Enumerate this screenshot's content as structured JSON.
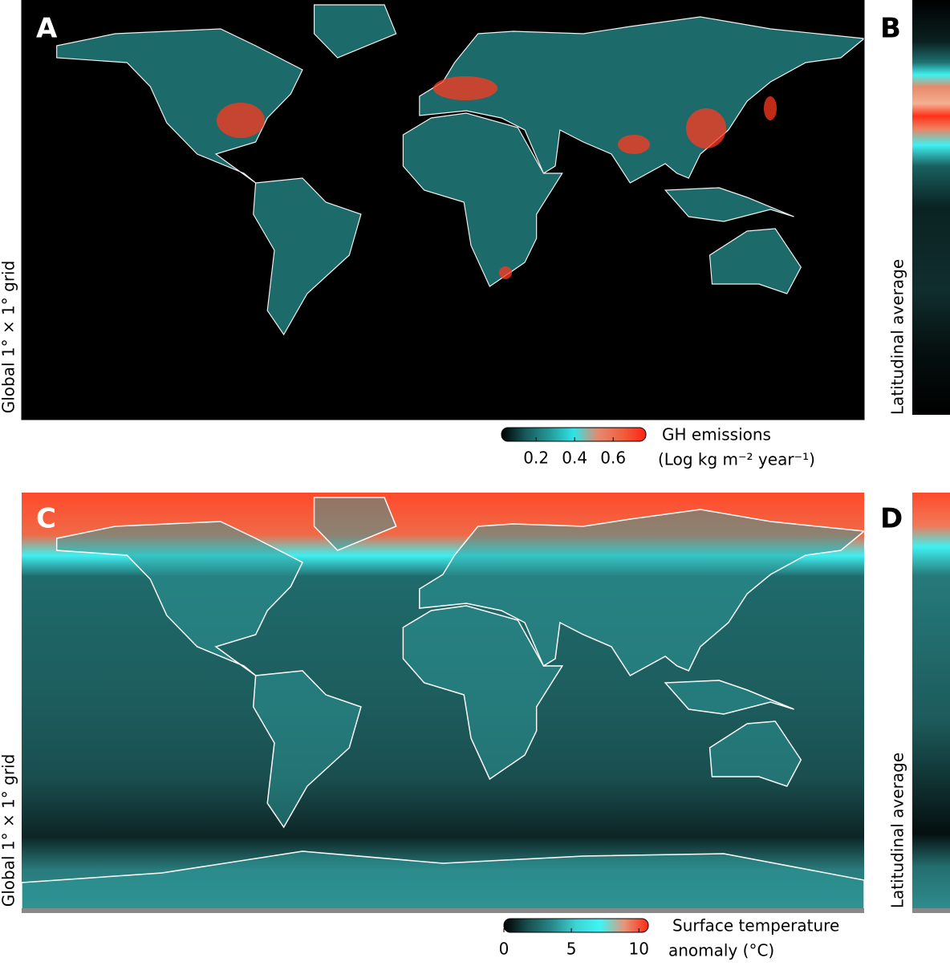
{
  "panels": [
    {
      "letter": "A",
      "side_letter": "B",
      "left_label": "Global 1° × 1° grid",
      "right_label": "Latitudinal average",
      "colorbar": {
        "title": [
          "GH emissions",
          "(Log kg m⁻² year⁻¹)"
        ],
        "xlim": [
          0.02,
          0.77
        ],
        "xticks": [
          0.2,
          0.4,
          0.6
        ],
        "colors": [
          "#000000",
          "#17595a",
          "#249a9a",
          "#2fe4e6",
          "#e48b70",
          "#f0603f",
          "#ff2414"
        ]
      }
    },
    {
      "letter": "C",
      "side_letter": "D",
      "left_label": "Global 1° × 1° grid",
      "right_label": "Latitudinal average",
      "colorbar": {
        "title": [
          "Surface temperature",
          "anomaly (°C)"
        ],
        "xlim": [
          0,
          10.7
        ],
        "xticks": [
          0,
          5,
          10
        ],
        "colors": [
          "#000000",
          "#1a4f50",
          "#27898a",
          "#3fd3d4",
          "#3ff5f5",
          "#e69578",
          "#ff2a14"
        ]
      }
    }
  ]
}
